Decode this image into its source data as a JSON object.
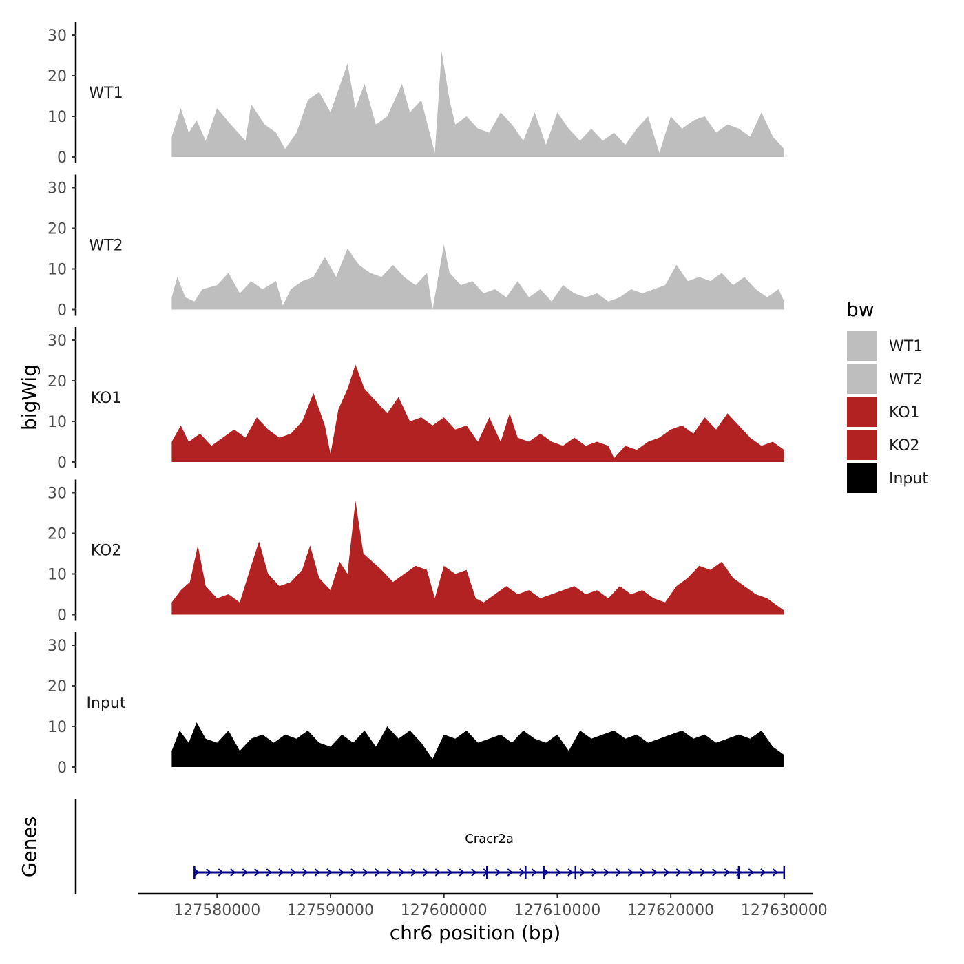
{
  "chart_data": {
    "type": "area",
    "xlabel": "chr6 position (bp)",
    "ylabel": "bigWig",
    "gene_track_label": "Genes",
    "xlim": [
      127573000,
      127632500
    ],
    "x_ticks": [
      127580000,
      127590000,
      127600000,
      127610000,
      127620000,
      127630000
    ],
    "x_tick_labels": [
      "127580000",
      "127590000",
      "127600000",
      "127610000",
      "127620000",
      "127630000"
    ],
    "ylim": [
      0,
      32
    ],
    "y_ticks": [
      0,
      10,
      20,
      30
    ],
    "y_tick_labels": [
      "0",
      "10",
      "20",
      "30"
    ],
    "signal_range": [
      127576000,
      127630000
    ],
    "legend": {
      "title": "bw",
      "entries": [
        {
          "label": "WT1",
          "color": "#bebebe"
        },
        {
          "label": "WT2",
          "color": "#bebebe"
        },
        {
          "label": "KO1",
          "color": "#b22222"
        },
        {
          "label": "KO2",
          "color": "#b22222"
        },
        {
          "label": "Input",
          "color": "#000000"
        }
      ]
    },
    "tracks": [
      {
        "name": "WT1",
        "color": "#bebebe",
        "points": [
          [
            127576000,
            5
          ],
          [
            127576800,
            12
          ],
          [
            127577500,
            6
          ],
          [
            127578200,
            9
          ],
          [
            127579000,
            4
          ],
          [
            127580000,
            12
          ],
          [
            127581200,
            8
          ],
          [
            127582500,
            4
          ],
          [
            127583000,
            13
          ],
          [
            127584200,
            8
          ],
          [
            127585200,
            6
          ],
          [
            127586000,
            2
          ],
          [
            127587000,
            6
          ],
          [
            127588000,
            14
          ],
          [
            127589000,
            16
          ],
          [
            127590000,
            11
          ],
          [
            127591500,
            23
          ],
          [
            127592200,
            12
          ],
          [
            127593000,
            18
          ],
          [
            127594000,
            8
          ],
          [
            127595000,
            10
          ],
          [
            127596300,
            18
          ],
          [
            127597000,
            11
          ],
          [
            127598000,
            14
          ],
          [
            127599200,
            1
          ],
          [
            127599800,
            26
          ],
          [
            127600500,
            14
          ],
          [
            127601000,
            8
          ],
          [
            127602000,
            10
          ],
          [
            127603000,
            7
          ],
          [
            127604000,
            6
          ],
          [
            127605000,
            11
          ],
          [
            127606000,
            8
          ],
          [
            127607000,
            4
          ],
          [
            127608000,
            11
          ],
          [
            127609000,
            3
          ],
          [
            127610000,
            11
          ],
          [
            127611000,
            7
          ],
          [
            127612000,
            4
          ],
          [
            127613000,
            7
          ],
          [
            127614000,
            4
          ],
          [
            127615000,
            6
          ],
          [
            127616000,
            3
          ],
          [
            127617000,
            7
          ],
          [
            127618000,
            10
          ],
          [
            127619000,
            1
          ],
          [
            127620000,
            10
          ],
          [
            127621000,
            7
          ],
          [
            127622000,
            9
          ],
          [
            127623000,
            10
          ],
          [
            127624000,
            6
          ],
          [
            127625000,
            8
          ],
          [
            127626000,
            7
          ],
          [
            127627000,
            5
          ],
          [
            127628000,
            11
          ],
          [
            127629000,
            5
          ],
          [
            127630000,
            2
          ]
        ]
      },
      {
        "name": "WT2",
        "color": "#bebebe",
        "points": [
          [
            127576000,
            3
          ],
          [
            127576500,
            8
          ],
          [
            127577200,
            3
          ],
          [
            127578000,
            2
          ],
          [
            127578700,
            5
          ],
          [
            127580000,
            6
          ],
          [
            127581000,
            9
          ],
          [
            127582000,
            4
          ],
          [
            127583000,
            7
          ],
          [
            127584000,
            5
          ],
          [
            127585200,
            7
          ],
          [
            127585800,
            1
          ],
          [
            127586500,
            5
          ],
          [
            127587500,
            7
          ],
          [
            127588500,
            8
          ],
          [
            127589500,
            13
          ],
          [
            127590500,
            8
          ],
          [
            127591500,
            15
          ],
          [
            127592500,
            11
          ],
          [
            127593500,
            9
          ],
          [
            127594500,
            8
          ],
          [
            127595500,
            11
          ],
          [
            127596500,
            8
          ],
          [
            127597500,
            6
          ],
          [
            127598500,
            9
          ],
          [
            127599000,
            0
          ],
          [
            127600000,
            16
          ],
          [
            127600500,
            9
          ],
          [
            127601500,
            6
          ],
          [
            127602500,
            7
          ],
          [
            127603500,
            4
          ],
          [
            127604500,
            5
          ],
          [
            127605500,
            3
          ],
          [
            127606500,
            7
          ],
          [
            127607500,
            3
          ],
          [
            127608500,
            5
          ],
          [
            127609500,
            2
          ],
          [
            127610500,
            6
          ],
          [
            127611500,
            4
          ],
          [
            127612500,
            3
          ],
          [
            127613500,
            4
          ],
          [
            127614500,
            2
          ],
          [
            127615500,
            3
          ],
          [
            127616500,
            5
          ],
          [
            127617500,
            4
          ],
          [
            127618500,
            5
          ],
          [
            127619500,
            6
          ],
          [
            127620500,
            11
          ],
          [
            127621500,
            7
          ],
          [
            127622500,
            8
          ],
          [
            127623500,
            7
          ],
          [
            127624500,
            9
          ],
          [
            127625500,
            6
          ],
          [
            127626500,
            8
          ],
          [
            127627500,
            5
          ],
          [
            127628500,
            3
          ],
          [
            127629500,
            5
          ],
          [
            127630000,
            2
          ]
        ]
      },
      {
        "name": "KO1",
        "color": "#b22222",
        "points": [
          [
            127576000,
            5
          ],
          [
            127576800,
            9
          ],
          [
            127577500,
            5
          ],
          [
            127578500,
            7
          ],
          [
            127579500,
            4
          ],
          [
            127580500,
            6
          ],
          [
            127581500,
            8
          ],
          [
            127582500,
            6
          ],
          [
            127583500,
            11
          ],
          [
            127584500,
            8
          ],
          [
            127585500,
            6
          ],
          [
            127586500,
            7
          ],
          [
            127587500,
            10
          ],
          [
            127588500,
            17
          ],
          [
            127589500,
            9
          ],
          [
            127590000,
            2
          ],
          [
            127590700,
            13
          ],
          [
            127591500,
            18
          ],
          [
            127592200,
            24
          ],
          [
            127593000,
            18
          ],
          [
            127594000,
            15
          ],
          [
            127595000,
            12
          ],
          [
            127596000,
            16
          ],
          [
            127597000,
            10
          ],
          [
            127598000,
            11
          ],
          [
            127599000,
            9
          ],
          [
            127600000,
            11
          ],
          [
            127601000,
            8
          ],
          [
            127602000,
            9
          ],
          [
            127603000,
            5
          ],
          [
            127604000,
            11
          ],
          [
            127605000,
            5
          ],
          [
            127605800,
            12
          ],
          [
            127606500,
            6
          ],
          [
            127607500,
            5
          ],
          [
            127608500,
            7
          ],
          [
            127609500,
            5
          ],
          [
            127610500,
            4
          ],
          [
            127611500,
            6
          ],
          [
            127612500,
            4
          ],
          [
            127613500,
            5
          ],
          [
            127614500,
            4
          ],
          [
            127615000,
            1
          ],
          [
            127616000,
            4
          ],
          [
            127617000,
            3
          ],
          [
            127618000,
            5
          ],
          [
            127619000,
            6
          ],
          [
            127620000,
            8
          ],
          [
            127621000,
            9
          ],
          [
            127622000,
            7
          ],
          [
            127623000,
            11
          ],
          [
            127624000,
            8
          ],
          [
            127625000,
            12
          ],
          [
            127626000,
            9
          ],
          [
            127627000,
            6
          ],
          [
            127628000,
            4
          ],
          [
            127629000,
            5
          ],
          [
            127630000,
            3
          ]
        ]
      },
      {
        "name": "KO2",
        "color": "#b22222",
        "points": [
          [
            127576000,
            3
          ],
          [
            127576800,
            6
          ],
          [
            127577600,
            8
          ],
          [
            127578300,
            17
          ],
          [
            127579000,
            7
          ],
          [
            127580000,
            4
          ],
          [
            127581000,
            5
          ],
          [
            127582000,
            3
          ],
          [
            127583000,
            12
          ],
          [
            127583700,
            18
          ],
          [
            127584500,
            10
          ],
          [
            127585500,
            7
          ],
          [
            127586500,
            8
          ],
          [
            127587500,
            11
          ],
          [
            127588200,
            17
          ],
          [
            127589000,
            9
          ],
          [
            127590000,
            6
          ],
          [
            127590800,
            13
          ],
          [
            127591500,
            10
          ],
          [
            127592200,
            28
          ],
          [
            127592900,
            15
          ],
          [
            127593700,
            13
          ],
          [
            127594500,
            11
          ],
          [
            127595500,
            8
          ],
          [
            127596500,
            10
          ],
          [
            127597500,
            12
          ],
          [
            127598500,
            11
          ],
          [
            127599200,
            4
          ],
          [
            127600000,
            12
          ],
          [
            127601000,
            10
          ],
          [
            127602000,
            11
          ],
          [
            127602800,
            4
          ],
          [
            127603500,
            3
          ],
          [
            127604500,
            5
          ],
          [
            127605500,
            7
          ],
          [
            127606500,
            5
          ],
          [
            127607500,
            6
          ],
          [
            127608500,
            4
          ],
          [
            127609500,
            5
          ],
          [
            127610500,
            6
          ],
          [
            127611500,
            7
          ],
          [
            127612500,
            5
          ],
          [
            127613500,
            6
          ],
          [
            127614500,
            4
          ],
          [
            127615500,
            7
          ],
          [
            127616500,
            5
          ],
          [
            127617500,
            6
          ],
          [
            127618500,
            4
          ],
          [
            127619500,
            3
          ],
          [
            127620500,
            7
          ],
          [
            127621500,
            9
          ],
          [
            127622500,
            12
          ],
          [
            127623500,
            11
          ],
          [
            127624500,
            13
          ],
          [
            127625500,
            9
          ],
          [
            127626500,
            7
          ],
          [
            127627500,
            5
          ],
          [
            127628500,
            4
          ],
          [
            127629500,
            2
          ],
          [
            127630000,
            1
          ]
        ]
      },
      {
        "name": "Input",
        "color": "#000000",
        "points": [
          [
            127576000,
            4
          ],
          [
            127576700,
            9
          ],
          [
            127577500,
            6
          ],
          [
            127578200,
            11
          ],
          [
            127579000,
            7
          ],
          [
            127580000,
            6
          ],
          [
            127581000,
            9
          ],
          [
            127582000,
            4
          ],
          [
            127583000,
            7
          ],
          [
            127584000,
            8
          ],
          [
            127585000,
            6
          ],
          [
            127586000,
            8
          ],
          [
            127587000,
            7
          ],
          [
            127588000,
            9
          ],
          [
            127589000,
            6
          ],
          [
            127590000,
            5
          ],
          [
            127591000,
            8
          ],
          [
            127592000,
            6
          ],
          [
            127593000,
            9
          ],
          [
            127594000,
            5
          ],
          [
            127595000,
            10
          ],
          [
            127596000,
            7
          ],
          [
            127597000,
            9
          ],
          [
            127598000,
            6
          ],
          [
            127599000,
            2
          ],
          [
            127600000,
            8
          ],
          [
            127601000,
            7
          ],
          [
            127602000,
            9
          ],
          [
            127603000,
            6
          ],
          [
            127604000,
            7
          ],
          [
            127605000,
            8
          ],
          [
            127606000,
            6
          ],
          [
            127607000,
            9
          ],
          [
            127608000,
            7
          ],
          [
            127609000,
            6
          ],
          [
            127610000,
            8
          ],
          [
            127611000,
            4
          ],
          [
            127612000,
            9
          ],
          [
            127613000,
            7
          ],
          [
            127614000,
            8
          ],
          [
            127615000,
            9
          ],
          [
            127616000,
            7
          ],
          [
            127617000,
            8
          ],
          [
            127618000,
            6
          ],
          [
            127619000,
            7
          ],
          [
            127620000,
            8
          ],
          [
            127621000,
            9
          ],
          [
            127622000,
            7
          ],
          [
            127623000,
            8
          ],
          [
            127624000,
            6
          ],
          [
            127625000,
            7
          ],
          [
            127626000,
            8
          ],
          [
            127627000,
            7
          ],
          [
            127628000,
            9
          ],
          [
            127629000,
            5
          ],
          [
            127630000,
            3
          ]
        ]
      }
    ],
    "genes": [
      {
        "name": "Cracr2a",
        "start": 127578000,
        "end": 127630000,
        "strand": "+",
        "color": "#00008b",
        "exons": [
          127578000,
          127603800,
          127607200,
          127608800,
          127611600,
          127626000,
          127630000
        ]
      }
    ]
  }
}
